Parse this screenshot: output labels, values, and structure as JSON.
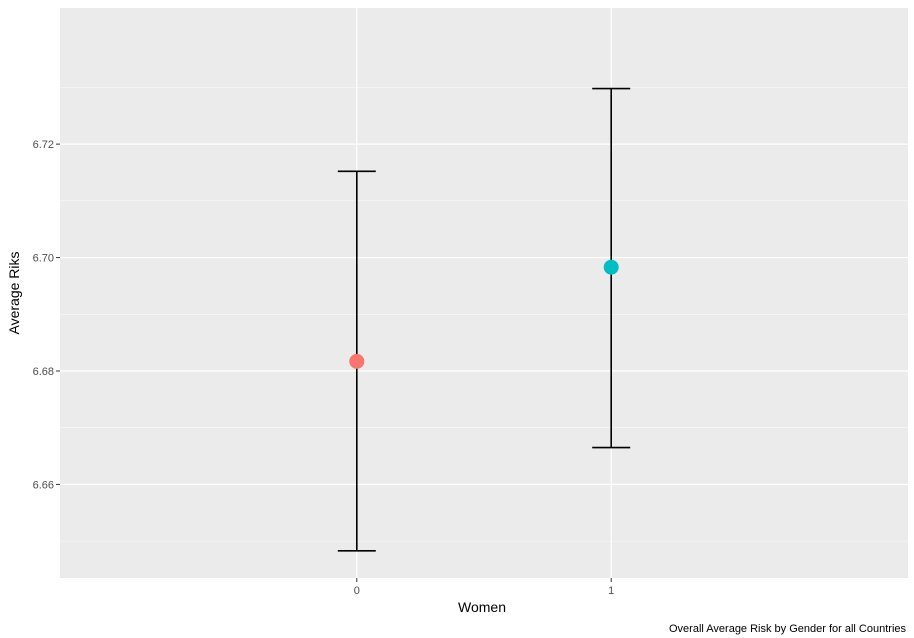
{
  "chart_data": {
    "type": "scatter",
    "subtype": "point-with-errorbars",
    "xlabel": "Women",
    "ylabel": "Average Riks",
    "caption": "Overall Average Risk by Gender for all Countries",
    "categories": [
      "0",
      "1"
    ],
    "points": [
      {
        "category": "0",
        "mean": 6.6817,
        "lower": 6.6483,
        "upper": 6.7152,
        "color": "#F8766D"
      },
      {
        "category": "1",
        "mean": 6.6983,
        "lower": 6.6665,
        "upper": 6.7298,
        "color": "#00BFC4"
      }
    ],
    "yticks": [
      6.66,
      6.68,
      6.7,
      6.72
    ],
    "ytick_labels": [
      "6.66",
      "6.68",
      "6.70",
      "6.72"
    ],
    "ylim": [
      6.6435,
      6.744
    ],
    "grid": true,
    "legend": "none",
    "colors": {
      "panel_background": "#EBEBEB",
      "grid": "#FFFFFF",
      "errorbar": "#000000"
    }
  }
}
